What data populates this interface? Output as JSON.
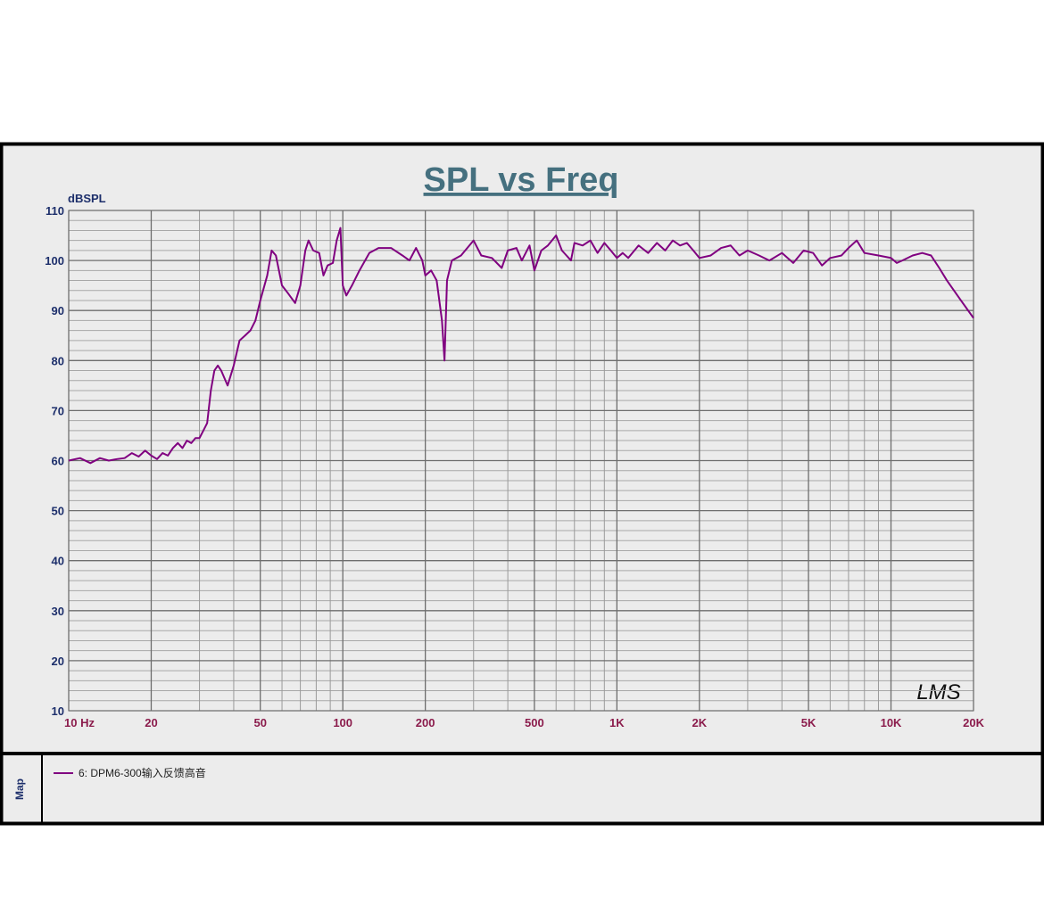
{
  "chart_data": {
    "type": "line",
    "title": "SPL vs Freq",
    "y_label": "dBSPL",
    "logo": "LMS",
    "legend_title": "Map",
    "xscale": "log",
    "grid": true,
    "xlim": [
      10,
      20000
    ],
    "ylim": [
      10,
      110
    ],
    "xticks": [
      {
        "value": 10,
        "label": "10  Hz"
      },
      20,
      50,
      100,
      200,
      500,
      {
        "value": 1000,
        "label": "1K"
      },
      {
        "value": 2000,
        "label": "2K"
      },
      {
        "value": 5000,
        "label": "5K"
      },
      {
        "value": 10000,
        "label": "10K"
      },
      {
        "value": 20000,
        "label": "20K"
      }
    ],
    "xminorticks": [
      30,
      40,
      60,
      70,
      80,
      90,
      300,
      400,
      600,
      700,
      800,
      900,
      3000,
      4000,
      6000,
      7000,
      8000,
      9000
    ],
    "yticks": [
      10,
      20,
      30,
      40,
      50,
      60,
      70,
      80,
      90,
      100,
      110
    ],
    "yminorticks": [
      12,
      14,
      16,
      18,
      22,
      24,
      26,
      28,
      32,
      34,
      36,
      38,
      42,
      44,
      46,
      48,
      52,
      54,
      56,
      58,
      62,
      64,
      66,
      68,
      72,
      74,
      76,
      78,
      82,
      84,
      86,
      88,
      92,
      94,
      96,
      98,
      102,
      104,
      106,
      108
    ],
    "x": [
      10,
      11,
      12,
      13,
      14,
      15,
      16,
      17,
      18,
      19,
      20,
      21,
      22,
      23,
      24,
      25,
      26,
      27,
      28,
      29,
      30,
      31,
      32,
      33,
      34,
      35,
      36,
      38,
      40,
      42,
      44,
      46,
      48,
      50,
      53,
      55,
      57,
      60,
      63,
      67,
      70,
      73,
      75,
      78,
      82,
      85,
      88,
      92,
      95,
      98,
      100,
      103,
      108,
      115,
      125,
      135,
      150,
      165,
      175,
      185,
      195,
      200,
      210,
      220,
      230,
      235,
      240,
      250,
      270,
      300,
      320,
      350,
      380,
      400,
      430,
      450,
      480,
      500,
      530,
      560,
      600,
      630,
      680,
      700,
      750,
      800,
      850,
      900,
      950,
      1000,
      1050,
      1100,
      1200,
      1300,
      1400,
      1500,
      1600,
      1700,
      1800,
      1900,
      2000,
      2200,
      2400,
      2600,
      2800,
      3000,
      3300,
      3600,
      4000,
      4400,
      4800,
      5200,
      5600,
      6000,
      6600,
      7000,
      7500,
      8000,
      9000,
      10000,
      10500,
      11000,
      12000,
      13000,
      14000,
      15000,
      16000,
      18000,
      20000
    ],
    "series": [
      {
        "name": "6: DPM6-300输入反馈高音",
        "color": "#800080",
        "values": [
          60,
          60.5,
          59.5,
          60.5,
          60,
          60.3,
          60.5,
          61.5,
          60.8,
          62,
          61,
          60.3,
          61.5,
          61,
          62.5,
          63.5,
          62.5,
          64,
          63.5,
          64.5,
          64.5,
          66,
          67.5,
          74,
          78,
          79,
          78,
          75,
          79,
          84,
          85,
          86,
          88,
          92,
          97,
          102,
          101,
          95,
          93.5,
          91.5,
          95,
          102,
          104,
          102,
          101.5,
          97,
          99,
          99.5,
          104,
          106.5,
          95,
          93,
          95,
          98,
          101.5,
          102.5,
          102.5,
          101,
          100,
          102.5,
          100,
          97,
          98,
          96,
          88,
          80,
          96,
          100,
          101,
          104,
          101,
          100.5,
          98.5,
          102,
          102.5,
          100,
          103,
          98,
          102,
          103,
          105,
          102,
          100,
          103.5,
          103,
          104,
          101.5,
          103.5,
          102,
          100.5,
          101.5,
          100.5,
          103,
          101.5,
          103.5,
          102,
          104,
          103,
          103.5,
          102,
          100.5,
          101,
          102.5,
          103,
          101,
          102,
          101,
          100,
          101.5,
          99.5,
          102,
          101.5,
          99,
          100.5,
          101,
          102.5,
          104,
          101.5,
          101,
          100.5,
          99.5,
          100,
          101,
          101.5,
          101,
          98.5,
          96,
          92,
          88.5
        ]
      }
    ]
  }
}
